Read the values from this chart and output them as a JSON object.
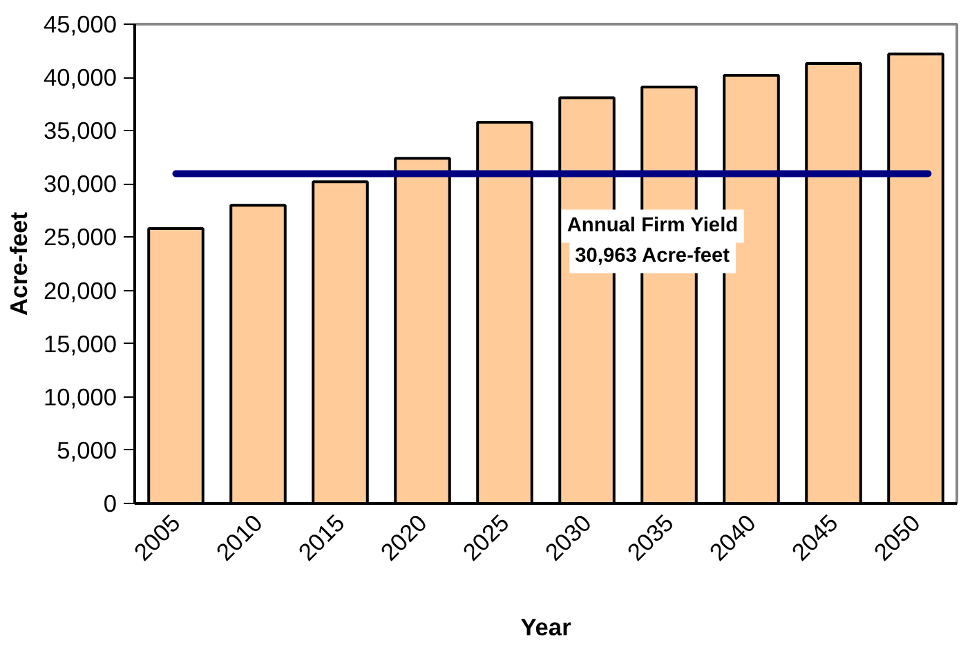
{
  "chart_data": {
    "type": "bar",
    "xlabel": "Year",
    "ylabel": "Acre-feet",
    "categories": [
      "2005",
      "2010",
      "2015",
      "2020",
      "2025",
      "2030",
      "2035",
      "2040",
      "2045",
      "2050"
    ],
    "values": [
      25800,
      28000,
      30200,
      32400,
      35800,
      38100,
      39100,
      40200,
      41300,
      42200
    ],
    "color": "#ffcc99",
    "ylim": [
      0,
      45000
    ],
    "yticks": [
      {
        "value": 0,
        "label": "0"
      },
      {
        "value": 5000,
        "label": "5,000"
      },
      {
        "value": 10000,
        "label": "10,000"
      },
      {
        "value": 15000,
        "label": "15,000"
      },
      {
        "value": 20000,
        "label": "20,000"
      },
      {
        "value": 25000,
        "label": "25,000"
      },
      {
        "value": 30000,
        "label": "30,000"
      },
      {
        "value": 35000,
        "label": "35,000"
      },
      {
        "value": 40000,
        "label": "40,000"
      },
      {
        "value": 45000,
        "label": "45,000"
      }
    ],
    "ref_lines": [
      {
        "axis": "y",
        "value": 30963,
        "label": "Annual Firm Yield\n30,963 Acre-feet",
        "color": "#000080"
      }
    ],
    "grid": false
  }
}
